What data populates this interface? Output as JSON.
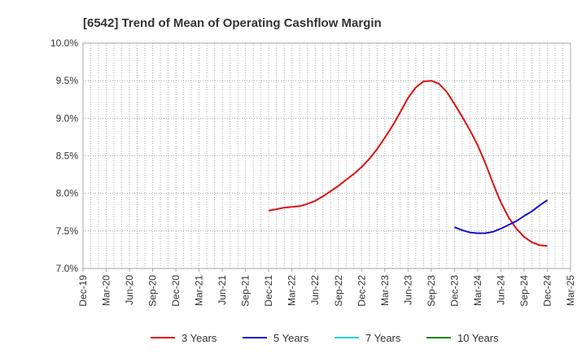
{
  "chart_data": {
    "type": "line",
    "title": "[6542]  Trend of Mean of Operating Cashflow Margin",
    "xlabel": "",
    "ylabel": "",
    "x_ticks": [
      "Dec-19",
      "Mar-20",
      "Jun-20",
      "Sep-20",
      "Dec-20",
      "Mar-21",
      "Jun-21",
      "Sep-21",
      "Dec-21",
      "Mar-22",
      "Jun-22",
      "Sep-22",
      "Dec-22",
      "Mar-23",
      "Jun-23",
      "Sep-23",
      "Dec-23",
      "Mar-24",
      "Jun-24",
      "Sep-24",
      "Dec-24",
      "Mar-25"
    ],
    "y_ticks": [
      "7.0%",
      "7.5%",
      "8.0%",
      "8.5%",
      "9.0%",
      "9.5%",
      "10.0%"
    ],
    "ylim": [
      7.0,
      10.0
    ],
    "grid": true,
    "legend_position": "bottom",
    "series": [
      {
        "name": "3 Years",
        "color": "#dd1111",
        "points": [
          [
            "Dec-21",
            7.77
          ],
          [
            "Jan-22",
            7.79
          ],
          [
            "Feb-22",
            7.81
          ],
          [
            "Mar-22",
            7.82
          ],
          [
            "Apr-22",
            7.83
          ],
          [
            "May-22",
            7.86
          ],
          [
            "Jun-22",
            7.9
          ],
          [
            "Jul-22",
            7.96
          ],
          [
            "Aug-22",
            8.03
          ],
          [
            "Sep-22",
            8.1
          ],
          [
            "Oct-22",
            8.18
          ],
          [
            "Nov-22",
            8.26
          ],
          [
            "Dec-22",
            8.35
          ],
          [
            "Jan-23",
            8.46
          ],
          [
            "Feb-23",
            8.59
          ],
          [
            "Mar-23",
            8.74
          ],
          [
            "Apr-23",
            8.9
          ],
          [
            "May-23",
            9.08
          ],
          [
            "Jun-23",
            9.27
          ],
          [
            "Jul-23",
            9.41
          ],
          [
            "Aug-23",
            9.49
          ],
          [
            "Sep-23",
            9.5
          ],
          [
            "Oct-23",
            9.46
          ],
          [
            "Nov-23",
            9.35
          ],
          [
            "Dec-23",
            9.19
          ],
          [
            "Jan-24",
            9.02
          ],
          [
            "Feb-24",
            8.84
          ],
          [
            "Mar-24",
            8.64
          ],
          [
            "Apr-24",
            8.4
          ],
          [
            "May-24",
            8.13
          ],
          [
            "Jun-24",
            7.88
          ],
          [
            "Jul-24",
            7.68
          ],
          [
            "Aug-24",
            7.53
          ],
          [
            "Sep-24",
            7.42
          ],
          [
            "Oct-24",
            7.35
          ],
          [
            "Nov-24",
            7.31
          ],
          [
            "Dec-24",
            7.3
          ]
        ]
      },
      {
        "name": "5 Years",
        "color": "#1111cc",
        "points": [
          [
            "Dec-23",
            7.55
          ],
          [
            "Jan-24",
            7.51
          ],
          [
            "Feb-24",
            7.48
          ],
          [
            "Mar-24",
            7.47
          ],
          [
            "Apr-24",
            7.47
          ],
          [
            "May-24",
            7.49
          ],
          [
            "Jun-24",
            7.53
          ],
          [
            "Jul-24",
            7.58
          ],
          [
            "Aug-24",
            7.63
          ],
          [
            "Sep-24",
            7.7
          ],
          [
            "Oct-24",
            7.76
          ],
          [
            "Nov-24",
            7.84
          ],
          [
            "Dec-24",
            7.91
          ]
        ]
      },
      {
        "name": "7 Years",
        "color": "#11dddd",
        "points": []
      },
      {
        "name": "10 Years",
        "color": "#118811",
        "points": []
      }
    ]
  }
}
